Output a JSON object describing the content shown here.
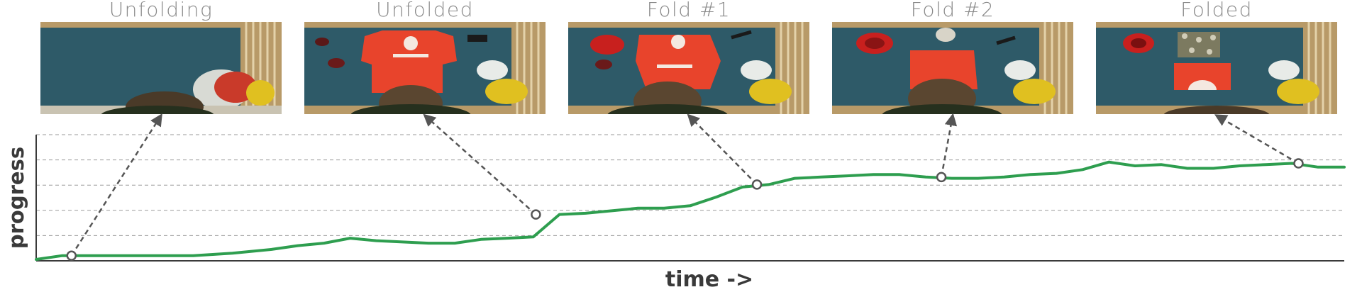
{
  "stages": [
    {
      "title": "Unfolding"
    },
    {
      "title": "Unfolded"
    },
    {
      "title": "Fold #1"
    },
    {
      "title": "Fold #2"
    },
    {
      "title": "Folded"
    }
  ],
  "chart_data": {
    "type": "line",
    "title": "",
    "xlabel": "time ->",
    "ylabel": "progress",
    "xlim": [
      0,
      1
    ],
    "ylim": [
      0,
      1
    ],
    "grid": true,
    "line_color": "#2e9e4f",
    "marker_color": "#555555",
    "series": [
      {
        "x": [
          0.0,
          0.02,
          0.05,
          0.08,
          0.1,
          0.12,
          0.15,
          0.18,
          0.2,
          0.22,
          0.24,
          0.26,
          0.28,
          0.3,
          0.32,
          0.34,
          0.36,
          0.38,
          0.4,
          0.42,
          0.44,
          0.46,
          0.48,
          0.5,
          0.52,
          0.54,
          0.56,
          0.58,
          0.6,
          0.62,
          0.64,
          0.66,
          0.68,
          0.7,
          0.72,
          0.74,
          0.76,
          0.78,
          0.8,
          0.82,
          0.84,
          0.86,
          0.88,
          0.9,
          0.92,
          0.94,
          0.96,
          0.98,
          1.0
        ],
        "y": [
          0.0,
          0.03,
          0.03,
          0.03,
          0.03,
          0.03,
          0.05,
          0.08,
          0.11,
          0.13,
          0.17,
          0.15,
          0.14,
          0.13,
          0.13,
          0.16,
          0.17,
          0.18,
          0.36,
          0.37,
          0.39,
          0.41,
          0.41,
          0.43,
          0.5,
          0.58,
          0.6,
          0.65,
          0.66,
          0.67,
          0.68,
          0.68,
          0.66,
          0.65,
          0.65,
          0.66,
          0.68,
          0.69,
          0.72,
          0.78,
          0.75,
          0.76,
          0.73,
          0.73,
          0.75,
          0.76,
          0.77,
          0.74,
          0.74
        ]
      }
    ],
    "keyframes": [
      {
        "stage": "Unfolding",
        "x": 0.027,
        "y": 0.03
      },
      {
        "stage": "Unfolded",
        "x": 0.382,
        "y": 0.36
      },
      {
        "stage": "Fold #1",
        "x": 0.551,
        "y": 0.6
      },
      {
        "stage": "Fold #2",
        "x": 0.692,
        "y": 0.66
      },
      {
        "stage": "Folded",
        "x": 0.965,
        "y": 0.77
      }
    ]
  }
}
